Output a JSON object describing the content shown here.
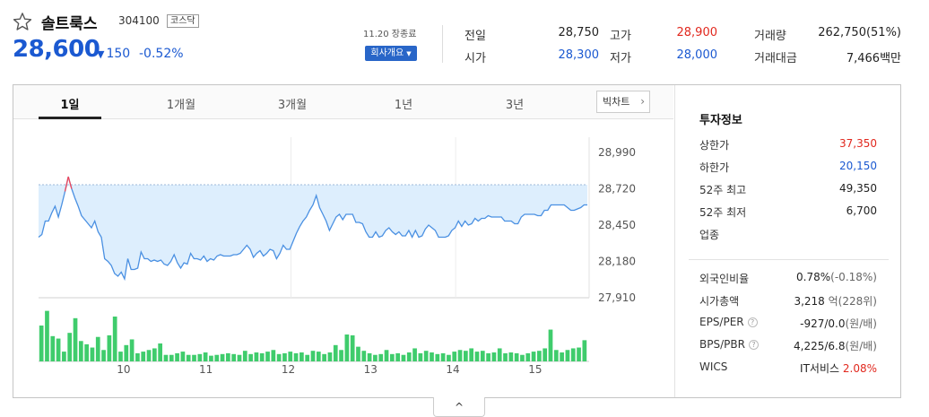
{
  "stock": {
    "name": "솔트룩스",
    "code": "304100",
    "market": "코스닥",
    "price": "28,600",
    "change_arrow": "▼",
    "change": "150",
    "rate": "-0.52%",
    "close_time": "11.20 장종료",
    "company_button": "회사개요",
    "company_button_icon": "▼"
  },
  "quote": [
    {
      "label": "전일",
      "value": "28,750",
      "color": "#222222"
    },
    {
      "label": "시가",
      "value": "28,300",
      "color": "#1b59d1"
    },
    {
      "label": "고가",
      "value": "28,900",
      "color": "#e1281e"
    },
    {
      "label": "저가",
      "value": "28,000",
      "color": "#1b59d1"
    },
    {
      "label": "거래량",
      "value": "262,750(51%)",
      "color": "#222222"
    },
    {
      "label": "거래대금",
      "value": "7,466백만",
      "color": "#222222"
    }
  ],
  "chart_tabs": [
    "1일",
    "1개월",
    "3개월",
    "1년",
    "3년"
  ],
  "active_tab": "1일",
  "big_chart_button": "빅차트",
  "invest": {
    "title": "투자정보",
    "rows": [
      {
        "label": "상한가",
        "value": "37,350",
        "color": "#e1281e"
      },
      {
        "label": "하한가",
        "value": "20,150",
        "color": "#1b59d1"
      },
      {
        "label": "52주 최고",
        "value": "49,350",
        "color": "#222222"
      },
      {
        "label": "52주 최저",
        "value": "6,700",
        "color": "#222222"
      },
      {
        "label": "업종",
        "value": "",
        "color": "#222222"
      }
    ],
    "rows2": [
      {
        "label": "외국인비율",
        "value": "0.78%",
        "sub": "(-0.18%)",
        "help": false,
        "color": "#222222"
      },
      {
        "label": "시가총액",
        "value": "3,218",
        "sub": "억(228위)",
        "help": false,
        "color": "#222222"
      },
      {
        "label": "EPS/PER",
        "value": "-927/0.0",
        "sub": "(원/배)",
        "help": true,
        "color": "#222222"
      },
      {
        "label": "BPS/PBR",
        "value": "4,225/6.8",
        "sub": "(원/배)",
        "help": true,
        "color": "#222222"
      },
      {
        "label": "WICS",
        "value": "IT서비스",
        "sub": "2.08%",
        "help": false,
        "color": "#e1281e"
      }
    ]
  },
  "chart_data": {
    "type": "line",
    "title": "",
    "xlabel": "",
    "ylabel": "",
    "x_ticks": [
      "10",
      "11",
      "12",
      "13",
      "14",
      "15"
    ],
    "y_ticks": [
      "28,990",
      "28,720",
      "28,450",
      "28,180",
      "27,910"
    ],
    "ylim": [
      27910,
      28990
    ],
    "reference_line": 28750,
    "colors": {
      "line": "#4a90e2",
      "fill": "#ddeefd",
      "above": "#f0465a",
      "volume": "#3fcc6c",
      "reference": "#9eb8d8"
    },
    "series": [
      {
        "values": [
          28360,
          28380,
          28480,
          28480,
          28540,
          28590,
          28510,
          28600,
          28700,
          28810,
          28720,
          28650,
          28590,
          28520,
          28490,
          28460,
          28430,
          28480,
          28400,
          28360,
          28200,
          28180,
          28150,
          28090,
          28070,
          28100,
          28050,
          28200,
          28120,
          28120,
          28130,
          28250,
          28200,
          28200,
          28180,
          28190,
          28180,
          28190,
          28160,
          28150,
          28180,
          28230,
          28170,
          28130,
          28170,
          28160,
          28240,
          28200,
          28200,
          28190,
          28220,
          28180,
          28200,
          28190,
          28220,
          28230,
          28220,
          28220,
          28220,
          28230,
          28230,
          28240,
          28270,
          28300,
          28270,
          28210,
          28240,
          28260,
          28220,
          28240,
          28270,
          28260,
          28200,
          28240,
          28300,
          28270,
          28270,
          28330,
          28390,
          28440,
          28480,
          28510,
          28560,
          28600,
          28670,
          28580,
          28530,
          28480,
          28410,
          28460,
          28510,
          28530,
          28490,
          28530,
          28530,
          28530,
          28470,
          28470,
          28460,
          28400,
          28360,
          28360,
          28400,
          28360,
          28370,
          28410,
          28430,
          28400,
          28380,
          28400,
          28370,
          28370,
          28410,
          28360,
          28410,
          28360,
          28370,
          28420,
          28450,
          28430,
          28410,
          28360,
          28360,
          28360,
          28370,
          28410,
          28430,
          28480,
          28440,
          28480,
          28450,
          28460,
          28500,
          28480,
          28500,
          28500,
          28520,
          28510,
          28510,
          28510,
          28510,
          28480,
          28480,
          28480,
          28460,
          28460,
          28510,
          28530,
          28530,
          28530,
          28530,
          28520,
          28520,
          28560,
          28560,
          28600,
          28600,
          28600,
          28600,
          28600,
          28580,
          28560,
          28560,
          28570,
          28580,
          28600,
          28600
        ]
      }
    ],
    "volume": [
      44,
      62,
      31,
      28,
      12,
      35,
      53,
      25,
      21,
      17,
      30,
      14,
      32,
      55,
      12,
      20,
      27,
      10,
      12,
      14,
      16,
      22,
      8,
      8,
      10,
      12,
      8,
      8,
      9,
      11,
      7,
      8,
      9,
      10,
      9,
      8,
      13,
      9,
      11,
      10,
      12,
      14,
      9,
      10,
      12,
      10,
      11,
      8,
      13,
      12,
      9,
      11,
      20,
      14,
      33,
      32,
      18,
      13,
      10,
      8,
      9,
      14,
      9,
      10,
      8,
      11,
      16,
      10,
      13,
      11,
      9,
      10,
      8,
      12,
      14,
      13,
      16,
      12,
      13,
      10,
      11,
      16,
      10,
      11,
      10,
      8,
      10,
      12,
      13,
      16,
      39,
      14,
      11,
      14,
      16,
      17,
      26
    ]
  }
}
